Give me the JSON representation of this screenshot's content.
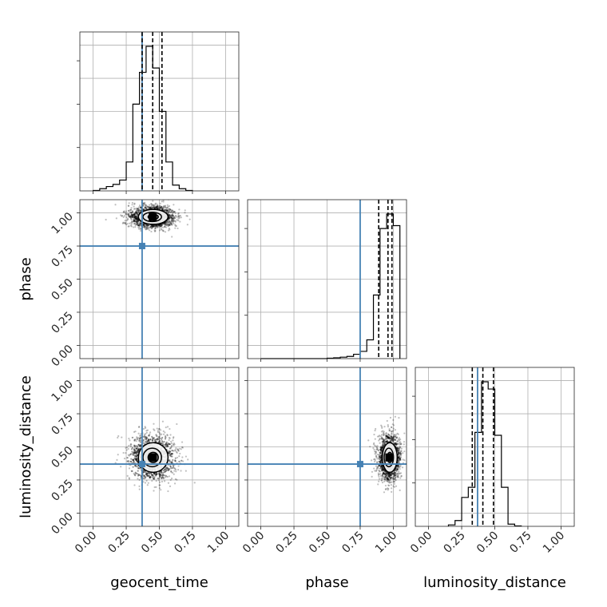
{
  "chart_data": {
    "type": "corner",
    "parameters": [
      "geocent_time",
      "phase",
      "luminosity_distance"
    ],
    "axis_range": [
      -0.1,
      1.1
    ],
    "ticks": [
      0.0,
      0.25,
      0.5,
      0.75,
      1.0
    ],
    "tick_labels": [
      "0.00",
      "0.25",
      "0.50",
      "0.75",
      "1.00"
    ],
    "grid": true,
    "truth_values": {
      "geocent_time": 0.37,
      "phase": 0.75,
      "luminosity_distance": 0.37
    },
    "truth_color": "#4682b4",
    "quantiles": {
      "geocent_time": [
        0.37,
        0.45,
        0.52
      ],
      "phase": [
        0.89,
        0.96,
        0.99
      ],
      "luminosity_distance": [
        0.33,
        0.41,
        0.49
      ]
    },
    "histograms": {
      "geocent_time": {
        "bin_edges": [
          0.0,
          0.05,
          0.1,
          0.15,
          0.2,
          0.25,
          0.3,
          0.35,
          0.4,
          0.45,
          0.5,
          0.55,
          0.6,
          0.65,
          0.7,
          0.75
        ],
        "counts": [
          0.3,
          1.5,
          3.0,
          4.5,
          7.5,
          20,
          60,
          82,
          100,
          85,
          55,
          20,
          4,
          1.5,
          0.3
        ]
      },
      "phase": {
        "bin_edges": [
          0.0,
          0.1,
          0.2,
          0.3,
          0.4,
          0.5,
          0.55,
          0.6,
          0.65,
          0.7,
          0.75,
          0.8,
          0.85,
          0.9,
          0.95,
          1.0,
          1.05
        ],
        "counts": [
          0,
          0,
          0,
          0,
          0,
          0.3,
          0.6,
          1,
          1.5,
          3,
          5,
          13,
          44,
          90,
          100,
          92
        ]
      },
      "luminosity_distance": {
        "bin_edges": [
          0.15,
          0.2,
          0.25,
          0.3,
          0.35,
          0.4,
          0.45,
          0.5,
          0.55,
          0.6,
          0.65,
          0.7
        ],
        "counts": [
          1,
          4,
          20,
          27,
          65,
          100,
          95,
          63,
          27,
          1.5,
          0.3
        ]
      }
    },
    "density_2d": [
      {
        "x": "geocent_time",
        "y": "phase",
        "peak_x": 0.45,
        "peak_y": 0.97,
        "sigma_x": 0.07,
        "sigma_y": 0.035
      },
      {
        "x": "geocent_time",
        "y": "luminosity_distance",
        "peak_x": 0.45,
        "peak_y": 0.42,
        "sigma_x": 0.07,
        "sigma_y": 0.07
      },
      {
        "x": "phase",
        "y": "luminosity_distance",
        "peak_x": 0.97,
        "peak_y": 0.42,
        "sigma_x": 0.035,
        "sigma_y": 0.07
      }
    ]
  }
}
